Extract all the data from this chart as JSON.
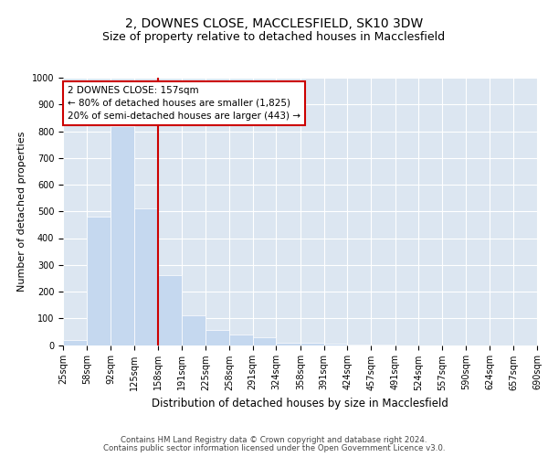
{
  "title1": "2, DOWNES CLOSE, MACCLESFIELD, SK10 3DW",
  "title2": "Size of property relative to detached houses in Macclesfield",
  "xlabel": "Distribution of detached houses by size in Macclesfield",
  "ylabel": "Number of detached properties",
  "footer1": "Contains HM Land Registry data © Crown copyright and database right 2024.",
  "footer2": "Contains public sector information licensed under the Open Government Licence v3.0.",
  "annotation_title": "2 DOWNES CLOSE: 157sqm",
  "annotation_line1": "← 80% of detached houses are smaller (1,825)",
  "annotation_line2": "20% of semi-detached houses are larger (443) →",
  "bar_edges": [
    25,
    58,
    92,
    125,
    158,
    191,
    225,
    258,
    291,
    324,
    358,
    391,
    424,
    457,
    491,
    524,
    557,
    590,
    624,
    657,
    690
  ],
  "bar_heights": [
    20,
    480,
    820,
    510,
    260,
    110,
    55,
    40,
    30,
    10,
    8,
    5,
    2,
    1,
    0,
    0,
    0,
    0,
    0,
    0
  ],
  "bar_color": "#c5d8ef",
  "vline_color": "#cc0000",
  "vline_x": 158,
  "annotation_box_color": "#cc0000",
  "background_color": "#dce6f1",
  "ylim": [
    0,
    1000
  ],
  "yticks": [
    0,
    100,
    200,
    300,
    400,
    500,
    600,
    700,
    800,
    900,
    1000
  ],
  "grid_color": "#ffffff",
  "title_fontsize": 10,
  "subtitle_fontsize": 9,
  "tick_fontsize": 7,
  "ylabel_fontsize": 8,
  "xlabel_fontsize": 8.5,
  "annotation_fontsize": 7.5
}
